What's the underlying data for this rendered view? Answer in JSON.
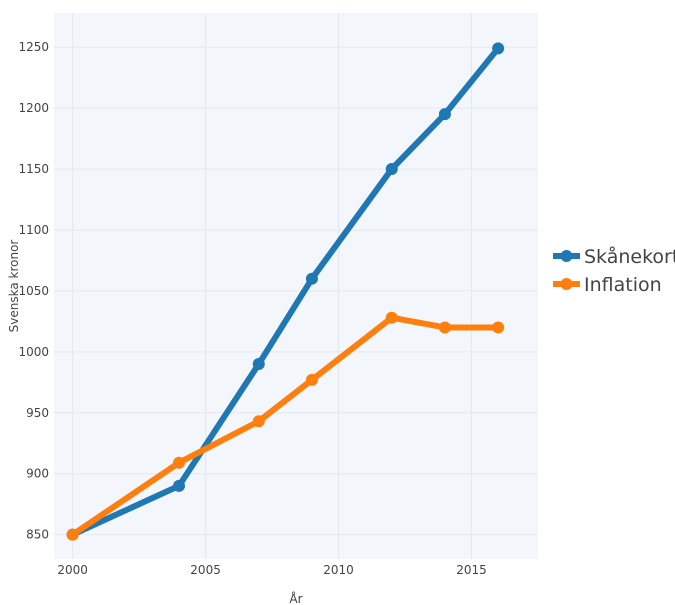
{
  "chart_data": {
    "type": "line",
    "xlabel": "År",
    "ylabel": "Svenska kronor",
    "xlim": [
      1999.3,
      2017.5
    ],
    "ylim": [
      830,
      1278
    ],
    "x_ticks": [
      2000,
      2005,
      2010,
      2015
    ],
    "y_ticks": [
      850,
      900,
      950,
      1000,
      1050,
      1100,
      1150,
      1200,
      1250
    ],
    "grid": true,
    "legend_position": "right",
    "plot_background": "#f3f6fb",
    "series": [
      {
        "name": "Skånekort",
        "color": "#1f77b4",
        "points": [
          {
            "x": 2000,
            "y": 850
          },
          {
            "x": 2004,
            "y": 890
          },
          {
            "x": 2007,
            "y": 990
          },
          {
            "x": 2009,
            "y": 1060
          },
          {
            "x": 2012,
            "y": 1150
          },
          {
            "x": 2014,
            "y": 1195
          },
          {
            "x": 2016,
            "y": 1249
          }
        ]
      },
      {
        "name": "Inflation",
        "color": "#ff7f0e",
        "points": [
          {
            "x": 2000,
            "y": 850
          },
          {
            "x": 2004,
            "y": 909
          },
          {
            "x": 2007,
            "y": 943
          },
          {
            "x": 2009,
            "y": 977
          },
          {
            "x": 2012,
            "y": 1028
          },
          {
            "x": 2014,
            "y": 1020
          },
          {
            "x": 2016,
            "y": 1020
          }
        ]
      }
    ]
  }
}
